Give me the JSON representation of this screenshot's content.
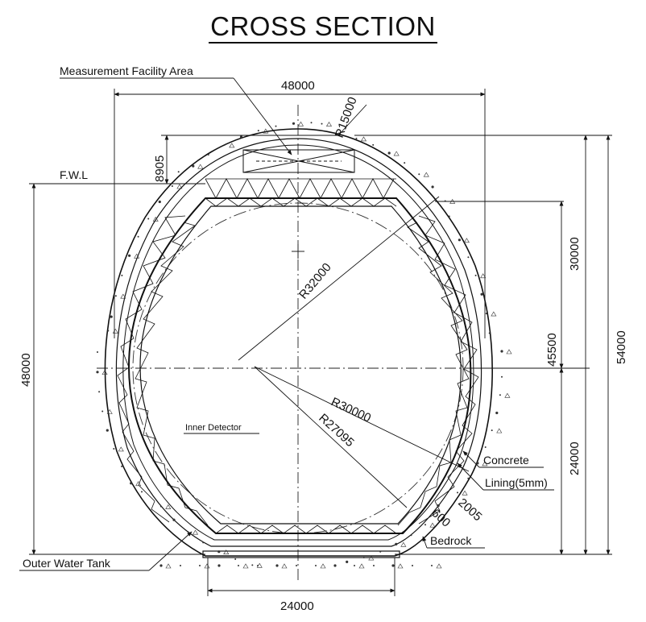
{
  "title": "CROSS SECTION",
  "labels": {
    "measurement_facility": "Measurement Facility Area",
    "fwl": "F.W.L",
    "inner_detector": "Inner Detector",
    "outer_water_tank": "Outer Water Tank",
    "concrete": "Concrete",
    "lining": "Lining(5mm)",
    "bedrock": "Bedrock"
  },
  "dimensions": {
    "top_width": "48000",
    "bottom_width": "24000",
    "left_height": "48000",
    "fwl_offset": "8905",
    "upper_height": "30000",
    "lower_height": "24000",
    "right_height": "45500",
    "total_height": "54000",
    "r_top": "R15000",
    "r_big": "R32000",
    "r_30000": "R30000",
    "r_27095": "R27095",
    "d_600": "600",
    "d_2005": "2005"
  }
}
